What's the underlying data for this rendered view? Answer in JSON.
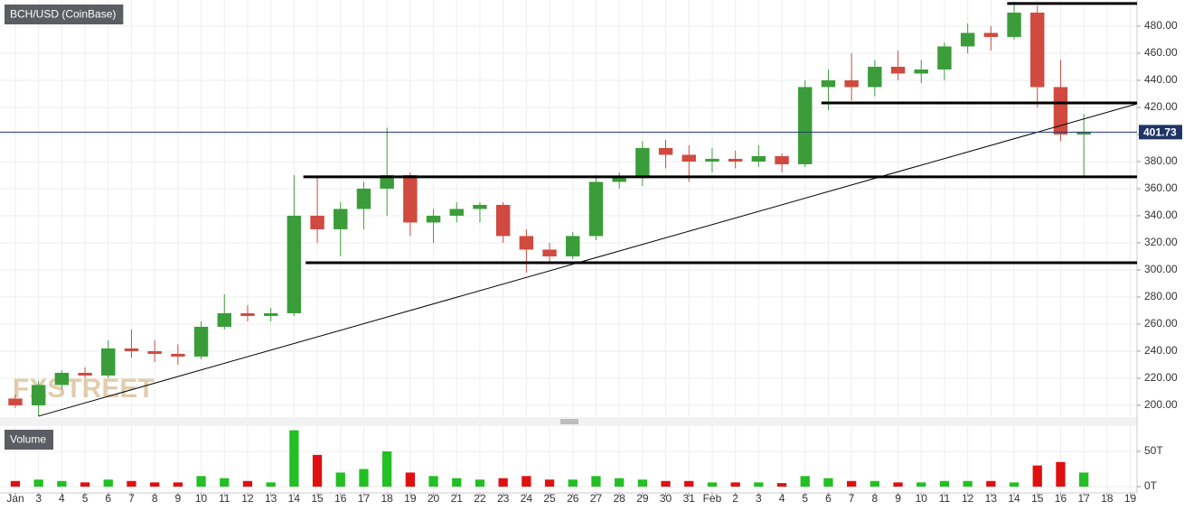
{
  "chart_data": [
    {
      "type": "candlestick",
      "title": "BCH/USD (CoinBase)",
      "watermark": "FXSTREET",
      "x": [
        0,
        1,
        2,
        3,
        4,
        5,
        6,
        7,
        8,
        9,
        10,
        11,
        12,
        13,
        14,
        15,
        16,
        17,
        18,
        19,
        20,
        21,
        22,
        23,
        24,
        25,
        26,
        27,
        28,
        29,
        30,
        31,
        32,
        33,
        34,
        35,
        36,
        37,
        38,
        39,
        40,
        41,
        42,
        43,
        44,
        45,
        46
      ],
      "open": [
        205,
        200,
        215,
        224,
        222,
        242,
        240,
        238,
        236,
        258,
        268,
        266,
        268,
        340,
        330,
        345,
        360,
        370,
        335,
        340,
        345,
        348,
        325,
        315,
        310,
        325,
        365,
        368,
        390,
        385,
        380,
        382,
        380,
        384,
        378,
        435,
        440,
        435,
        450,
        445,
        448,
        465,
        475,
        472,
        490,
        435,
        400
      ],
      "high": [
        208,
        218,
        226,
        228,
        248,
        256,
        248,
        245,
        262,
        282,
        274,
        272,
        370,
        368,
        350,
        365,
        405,
        372,
        345,
        350,
        350,
        350,
        330,
        320,
        328,
        370,
        372,
        395,
        396,
        392,
        390,
        388,
        392,
        386,
        440,
        448,
        460,
        455,
        462,
        455,
        468,
        482,
        480,
        498,
        495,
        455,
        415
      ],
      "low": [
        198,
        192,
        212,
        220,
        220,
        235,
        232,
        230,
        234,
        256,
        262,
        262,
        266,
        320,
        310,
        330,
        340,
        325,
        320,
        335,
        335,
        320,
        298,
        305,
        308,
        322,
        360,
        362,
        375,
        365,
        372,
        375,
        376,
        372,
        376,
        418,
        425,
        428,
        440,
        438,
        440,
        460,
        462,
        470,
        420,
        395,
        368
      ],
      "close": [
        200,
        215,
        224,
        222,
        242,
        240,
        238,
        236,
        258,
        268,
        266,
        268,
        340,
        330,
        345,
        360,
        370,
        335,
        340,
        345,
        348,
        325,
        315,
        310,
        325,
        365,
        368,
        390,
        385,
        380,
        382,
        380,
        384,
        378,
        435,
        440,
        435,
        450,
        445,
        448,
        465,
        475,
        472,
        490,
        435,
        400,
        402
      ],
      "up_color": "#3a9d3a",
      "down_color": "#d04a3f",
      "last_price": 401.73,
      "last_price_color": "#1f3566",
      "levels": [
        {
          "level": 496.7,
          "from": 42.7
        },
        {
          "level": 423.3,
          "from": 34.7
        },
        {
          "level": 368.7,
          "from": 12.4
        },
        {
          "level": 305.3,
          "from": 12.5
        }
      ],
      "trendline": {
        "x": [
          1,
          48.3
        ],
        "y": [
          192,
          422.7
        ]
      },
      "xlim": [
        -0.66,
        48.29
      ],
      "ylim": [
        191.3,
        499.3
      ],
      "grid": true,
      "yticks": [
        {
          "value": 200,
          "label": "200.00"
        },
        {
          "value": 220,
          "label": "220.00"
        },
        {
          "value": 240,
          "label": "240.00"
        },
        {
          "value": 260,
          "label": "260.00"
        },
        {
          "value": 280,
          "label": "280.00"
        },
        {
          "value": 300,
          "label": "300.00"
        },
        {
          "value": 320,
          "label": "320.00"
        },
        {
          "value": 340,
          "label": "340.00"
        },
        {
          "value": 360,
          "label": "360.00"
        },
        {
          "value": 380,
          "label": "380.00"
        },
        {
          "value": 400,
          "label": "400.00"
        },
        {
          "value": 420,
          "label": "420.00"
        },
        {
          "value": 440,
          "label": "440.00"
        },
        {
          "value": 460,
          "label": "460.00"
        },
        {
          "value": 480,
          "label": "480.00"
        }
      ],
      "xticks": [
        {
          "value": 0,
          "label": "Jan"
        },
        {
          "value": 1,
          "label": "3"
        },
        {
          "value": 2,
          "label": "4"
        },
        {
          "value": 3,
          "label": "5"
        },
        {
          "value": 4,
          "label": "6"
        },
        {
          "value": 5,
          "label": "7"
        },
        {
          "value": 6,
          "label": "8"
        },
        {
          "value": 7,
          "label": "9"
        },
        {
          "value": 8,
          "label": "10"
        },
        {
          "value": 9,
          "label": "11"
        },
        {
          "value": 10,
          "label": "12"
        },
        {
          "value": 11,
          "label": "13"
        },
        {
          "value": 12,
          "label": "14"
        },
        {
          "value": 13,
          "label": "15"
        },
        {
          "value": 14,
          "label": "16"
        },
        {
          "value": 15,
          "label": "17"
        },
        {
          "value": 16,
          "label": "18"
        },
        {
          "value": 17,
          "label": "19"
        },
        {
          "value": 18,
          "label": "20"
        },
        {
          "value": 19,
          "label": "21"
        },
        {
          "value": 20,
          "label": "22"
        },
        {
          "value": 21,
          "label": "23"
        },
        {
          "value": 22,
          "label": "24"
        },
        {
          "value": 23,
          "label": "25"
        },
        {
          "value": 24,
          "label": "26"
        },
        {
          "value": 25,
          "label": "27"
        },
        {
          "value": 26,
          "label": "28"
        },
        {
          "value": 27,
          "label": "29"
        },
        {
          "value": 28,
          "label": "30"
        },
        {
          "value": 29,
          "label": "31"
        },
        {
          "value": 30,
          "label": "Feb"
        },
        {
          "value": 31,
          "label": "2"
        },
        {
          "value": 32,
          "label": "3"
        },
        {
          "value": 33,
          "label": "4"
        },
        {
          "value": 34,
          "label": "5"
        },
        {
          "value": 35,
          "label": "6"
        },
        {
          "value": 36,
          "label": "7"
        },
        {
          "value": 37,
          "label": "8"
        },
        {
          "value": 38,
          "label": "9"
        },
        {
          "value": 39,
          "label": "10"
        },
        {
          "value": 40,
          "label": "11"
        },
        {
          "value": 41,
          "label": "12"
        },
        {
          "value": 42,
          "label": "13"
        },
        {
          "value": 43,
          "label": "14"
        },
        {
          "value": 44,
          "label": "15"
        },
        {
          "value": 45,
          "label": "16"
        },
        {
          "value": 46,
          "label": "17"
        },
        {
          "value": 47,
          "label": "18"
        },
        {
          "value": 48,
          "label": "19"
        }
      ]
    },
    {
      "type": "bar",
      "title": "Volume",
      "values": [
        8,
        10,
        8,
        6,
        10,
        8,
        6,
        6,
        15,
        12,
        8,
        6,
        80,
        45,
        20,
        25,
        50,
        20,
        15,
        12,
        10,
        12,
        15,
        10,
        10,
        15,
        12,
        10,
        8,
        8,
        6,
        6,
        6,
        5,
        15,
        12,
        8,
        8,
        6,
        6,
        8,
        8,
        8,
        6,
        30,
        35,
        20
      ],
      "up_color": "#22c022",
      "down_color": "#e01010",
      "ylim": [
        -6.4,
        84.6
      ],
      "yticks": [
        {
          "value": 0,
          "label": "0T"
        },
        {
          "value": 50,
          "label": "50T"
        }
      ]
    }
  ]
}
